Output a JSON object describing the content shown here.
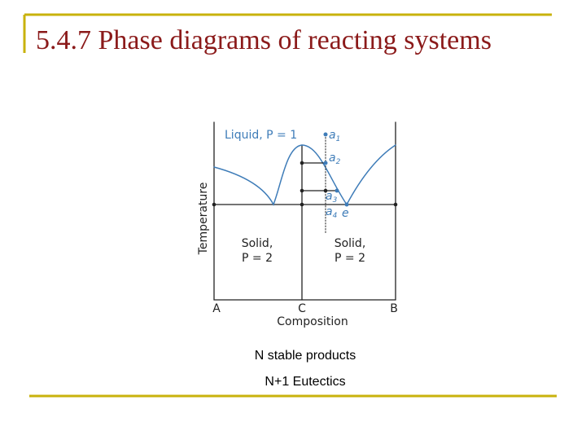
{
  "title": "5.4.7 Phase diagrams of reacting systems",
  "diagram": {
    "liquid_label": "Liquid, P = 1",
    "points": [
      {
        "letter": "a",
        "sub": "1"
      },
      {
        "letter": "a",
        "sub": "2"
      },
      {
        "letter": "a",
        "sub": "3"
      },
      {
        "letter": "a",
        "sub": "4"
      }
    ],
    "eutectic_label": "e",
    "solid_left": [
      "Solid,",
      "P = 2"
    ],
    "solid_right": [
      "Solid,",
      "P = 2"
    ],
    "y_axis_label": "Temperature",
    "x_axis_label": "Composition",
    "x_labels": [
      "A",
      "C",
      "B"
    ]
  },
  "captions": [
    "N stable products",
    "N+1 Eutectics"
  ]
}
